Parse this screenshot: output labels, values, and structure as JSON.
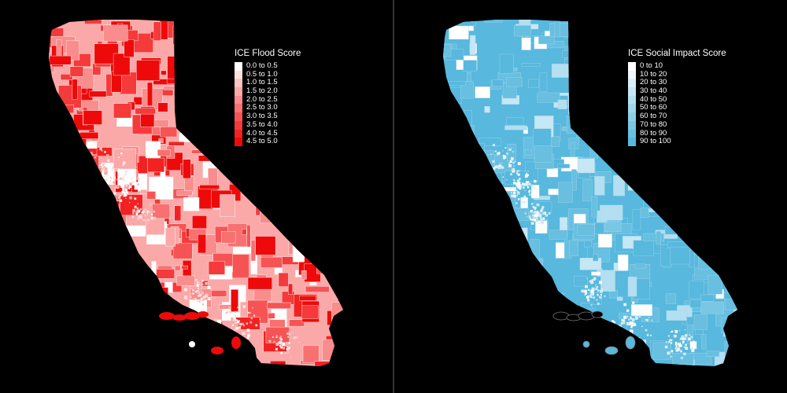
{
  "maps": [
    {
      "id": "flood",
      "legend": {
        "title": "ICE Flood Score",
        "entries": [
          {
            "label": "0.0 to 0.5",
            "color": "#ffffff"
          },
          {
            "label": "0.5 to 1.0",
            "color": "#fde1e1"
          },
          {
            "label": "1.0 to 1.5",
            "color": "#fcc4c4"
          },
          {
            "label": "1.5 to 2.0",
            "color": "#fba8a8"
          },
          {
            "label": "2.0 to 2.5",
            "color": "#f98c8c"
          },
          {
            "label": "2.5 to 3.0",
            "color": "#f87070"
          },
          {
            "label": "3.0 to 3.5",
            "color": "#f65454"
          },
          {
            "label": "3.5 to 4.0",
            "color": "#f43a3a"
          },
          {
            "label": "4.0 to 4.5",
            "color": "#f22222"
          },
          {
            "label": "4.5 to 5.0",
            "color": "#ee0a0a"
          }
        ]
      }
    },
    {
      "id": "social",
      "legend": {
        "title": "ICE Social Impact Score",
        "entries": [
          {
            "label": "0 to 10",
            "color": "#ffffff"
          },
          {
            "label": "10 to 20",
            "color": "#ecf6fb"
          },
          {
            "label": "20 to 30",
            "color": "#d9eff8"
          },
          {
            "label": "30 to 40",
            "color": "#c6e7f4"
          },
          {
            "label": "40 to 50",
            "color": "#b3dff0"
          },
          {
            "label": "50 to 60",
            "color": "#a0d7ec"
          },
          {
            "label": "60 to 70",
            "color": "#8dcfe8"
          },
          {
            "label": "70 to 80",
            "color": "#7ac7e4"
          },
          {
            "label": "80 to 90",
            "color": "#68bfe0"
          },
          {
            "label": "90 to 100",
            "color": "#58b8dd"
          }
        ]
      }
    }
  ]
}
